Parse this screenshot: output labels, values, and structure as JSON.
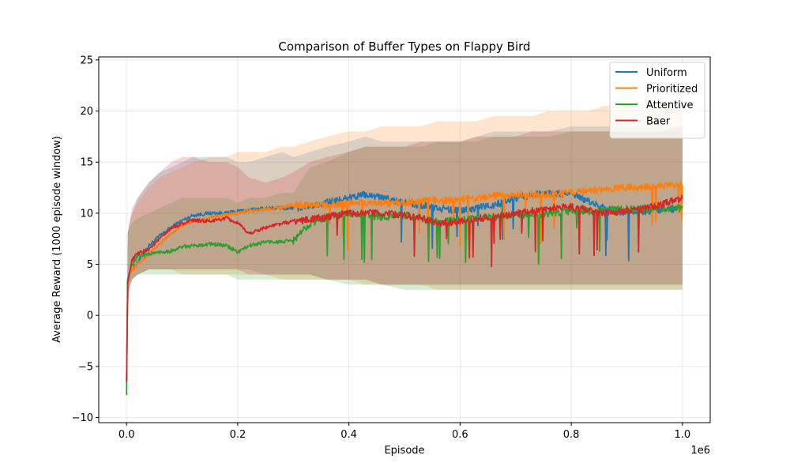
{
  "chart_data": {
    "type": "line",
    "title": "Comparison of Buffer Types on Flappy Bird",
    "xlabel": "Episode",
    "ylabel": "Average Reward (1000 episode window)",
    "x_scale_label": "1e6",
    "xlim": [
      -0.05,
      1.05
    ],
    "ylim": [
      -10.5,
      25.3
    ],
    "xticks": [
      0.0,
      0.2,
      0.4,
      0.6,
      0.8,
      1.0
    ],
    "xtick_labels": [
      "0.0",
      "0.2",
      "0.4",
      "0.6",
      "0.8",
      "1.0"
    ],
    "yticks": [
      -10,
      -5,
      0,
      5,
      10,
      15,
      20,
      25
    ],
    "ytick_labels": [
      "−10",
      "−5",
      "0",
      "5",
      "10",
      "15",
      "20",
      "25"
    ],
    "grid": true,
    "legend_position": "top-right",
    "series": [
      {
        "name": "Uniform",
        "color": "#1f77b4",
        "x": [
          0.0,
          0.002,
          0.005,
          0.01,
          0.02,
          0.04,
          0.06,
          0.08,
          0.1,
          0.12,
          0.15,
          0.18,
          0.2,
          0.22,
          0.25,
          0.28,
          0.3,
          0.33,
          0.36,
          0.4,
          0.43,
          0.46,
          0.5,
          0.53,
          0.56,
          0.6,
          0.63,
          0.66,
          0.7,
          0.73,
          0.76,
          0.8,
          0.83,
          0.86,
          0.9,
          0.93,
          0.96,
          1.0
        ],
        "values": [
          -6.5,
          3.0,
          4.0,
          4.5,
          5.2,
          6.8,
          7.8,
          8.6,
          9.3,
          9.8,
          10.0,
          10.0,
          10.2,
          10.3,
          10.5,
          10.5,
          10.5,
          10.7,
          11.0,
          11.5,
          11.8,
          11.5,
          11.0,
          10.8,
          10.5,
          10.2,
          10.5,
          10.8,
          11.5,
          11.8,
          12.0,
          11.8,
          11.2,
          10.5,
          10.0,
          10.2,
          10.3,
          10.5
        ],
        "upper": [
          -6.0,
          8.0,
          9.0,
          10.0,
          11.5,
          13.0,
          14.0,
          14.5,
          15.0,
          15.5,
          15.5,
          15.5,
          15.0,
          15.0,
          15.5,
          16.0,
          15.5,
          16.0,
          16.5,
          17.0,
          17.5,
          17.0,
          17.0,
          17.0,
          17.0,
          17.0,
          17.5,
          18.0,
          18.0,
          18.0,
          18.0,
          18.5,
          18.5,
          18.5,
          18.5,
          18.5,
          18.5,
          18.5
        ],
        "lower": [
          -8.0,
          0.5,
          3.0,
          3.5,
          4.0,
          4.5,
          4.5,
          4.5,
          4.5,
          4.5,
          4.5,
          4.5,
          4.5,
          4.5,
          4.0,
          4.0,
          4.0,
          4.0,
          3.5,
          3.5,
          3.5,
          3.0,
          3.0,
          3.0,
          3.0,
          3.0,
          3.0,
          3.0,
          3.0,
          3.0,
          3.0,
          3.0,
          3.0,
          3.0,
          3.0,
          3.0,
          3.0,
          3.0
        ]
      },
      {
        "name": "Prioritized",
        "color": "#ff7f0e",
        "x": [
          0.0,
          0.002,
          0.005,
          0.01,
          0.02,
          0.04,
          0.06,
          0.08,
          0.1,
          0.12,
          0.15,
          0.18,
          0.2,
          0.22,
          0.25,
          0.28,
          0.3,
          0.33,
          0.36,
          0.4,
          0.43,
          0.46,
          0.5,
          0.53,
          0.56,
          0.6,
          0.63,
          0.66,
          0.7,
          0.73,
          0.76,
          0.8,
          0.83,
          0.86,
          0.9,
          0.93,
          0.96,
          1.0
        ],
        "values": [
          -6.5,
          3.5,
          4.0,
          4.5,
          5.0,
          6.0,
          7.0,
          8.0,
          8.8,
          9.2,
          9.6,
          9.8,
          10.0,
          10.2,
          10.4,
          10.6,
          10.8,
          10.8,
          10.8,
          11.0,
          11.0,
          11.0,
          11.0,
          11.2,
          11.3,
          11.3,
          11.5,
          11.7,
          11.8,
          11.8,
          11.8,
          12.0,
          12.2,
          12.3,
          12.5,
          12.5,
          12.7,
          12.8
        ],
        "upper": [
          -6.0,
          8.0,
          9.0,
          10.0,
          11.0,
          12.5,
          13.5,
          14.0,
          14.5,
          15.0,
          15.5,
          15.5,
          16.0,
          16.0,
          16.0,
          16.5,
          16.5,
          17.0,
          17.5,
          18.0,
          18.0,
          18.5,
          18.5,
          18.5,
          19.0,
          19.0,
          19.0,
          19.5,
          19.5,
          19.5,
          20.0,
          20.0,
          20.0,
          20.5,
          20.5,
          20.5,
          20.5,
          21.0
        ],
        "lower": [
          -8.0,
          1.0,
          3.0,
          3.5,
          4.0,
          4.5,
          4.5,
          4.5,
          4.0,
          4.0,
          4.0,
          4.0,
          4.0,
          4.0,
          4.0,
          3.5,
          3.5,
          3.5,
          3.5,
          3.5,
          3.0,
          3.0,
          3.0,
          3.0,
          2.5,
          2.5,
          2.5,
          2.5,
          2.5,
          2.5,
          2.5,
          2.5,
          2.5,
          2.5,
          2.5,
          2.5,
          2.5,
          2.5
        ]
      },
      {
        "name": "Attentive",
        "color": "#2ca02c",
        "x": [
          0.0,
          0.002,
          0.005,
          0.01,
          0.02,
          0.04,
          0.06,
          0.08,
          0.1,
          0.12,
          0.15,
          0.18,
          0.2,
          0.22,
          0.25,
          0.28,
          0.3,
          0.33,
          0.36,
          0.4,
          0.43,
          0.46,
          0.5,
          0.53,
          0.56,
          0.6,
          0.63,
          0.66,
          0.7,
          0.73,
          0.76,
          0.8,
          0.83,
          0.86,
          0.9,
          0.93,
          0.96,
          1.0
        ],
        "values": [
          -7.8,
          3.5,
          4.2,
          5.0,
          5.8,
          6.0,
          6.2,
          6.3,
          6.7,
          6.8,
          7.0,
          6.8,
          6.2,
          6.8,
          7.2,
          7.2,
          7.3,
          9.0,
          9.6,
          10.0,
          9.8,
          9.6,
          9.8,
          9.5,
          9.2,
          9.3,
          9.5,
          9.6,
          9.8,
          9.8,
          10.0,
          10.2,
          10.2,
          10.3,
          10.4,
          10.4,
          10.5,
          10.5
        ],
        "upper": [
          -7.5,
          8.0,
          8.5,
          9.0,
          9.5,
          10.0,
          10.5,
          11.0,
          11.5,
          11.5,
          11.5,
          11.5,
          11.0,
          11.5,
          11.5,
          12.0,
          12.0,
          14.5,
          15.0,
          16.0,
          16.5,
          16.5,
          16.5,
          16.5,
          17.0,
          17.0,
          17.0,
          17.5,
          17.5,
          17.5,
          17.5,
          18.0,
          18.0,
          18.0,
          18.0,
          18.0,
          18.0,
          18.0
        ],
        "lower": [
          -8.2,
          0.5,
          2.5,
          3.5,
          4.0,
          4.0,
          4.0,
          4.0,
          4.0,
          4.0,
          4.0,
          4.0,
          3.5,
          3.5,
          3.5,
          3.5,
          3.5,
          3.5,
          3.5,
          3.0,
          3.0,
          3.0,
          2.5,
          2.5,
          2.5,
          2.5,
          2.5,
          2.5,
          2.5,
          2.5,
          2.5,
          2.5,
          2.5,
          2.5,
          2.5,
          2.5,
          2.5,
          2.5
        ]
      },
      {
        "name": "Baer",
        "color": "#d62728",
        "x": [
          0.0,
          0.002,
          0.005,
          0.01,
          0.02,
          0.04,
          0.06,
          0.08,
          0.1,
          0.12,
          0.15,
          0.18,
          0.2,
          0.22,
          0.25,
          0.28,
          0.3,
          0.33,
          0.36,
          0.4,
          0.43,
          0.46,
          0.5,
          0.53,
          0.56,
          0.6,
          0.63,
          0.66,
          0.7,
          0.73,
          0.76,
          0.8,
          0.83,
          0.86,
          0.9,
          0.93,
          0.96,
          1.0
        ],
        "values": [
          -6.5,
          3.2,
          4.0,
          5.5,
          6.0,
          6.5,
          7.5,
          8.5,
          9.0,
          9.3,
          9.2,
          9.5,
          9.0,
          8.0,
          8.6,
          9.0,
          9.2,
          9.4,
          9.6,
          10.0,
          10.0,
          10.0,
          9.8,
          9.5,
          9.0,
          9.2,
          9.5,
          9.6,
          10.0,
          10.2,
          10.5,
          10.6,
          10.3,
          10.0,
          10.2,
          10.4,
          10.8,
          11.5
        ],
        "upper": [
          -6.0,
          8.0,
          9.0,
          10.5,
          11.5,
          13.0,
          14.0,
          15.0,
          15.5,
          15.5,
          15.0,
          15.0,
          14.5,
          13.5,
          13.0,
          13.5,
          14.0,
          15.0,
          15.5,
          16.0,
          16.5,
          16.5,
          16.5,
          17.0,
          17.0,
          17.0,
          17.5,
          17.5,
          17.5,
          18.0,
          18.0,
          18.0,
          18.0,
          18.0,
          18.0,
          18.0,
          18.0,
          18.5
        ],
        "lower": [
          -7.5,
          0.5,
          2.5,
          3.5,
          4.0,
          4.5,
          4.5,
          4.5,
          4.5,
          4.5,
          4.5,
          4.5,
          4.5,
          4.0,
          4.0,
          4.0,
          4.0,
          4.0,
          3.5,
          3.5,
          3.5,
          3.0,
          3.0,
          3.0,
          3.0,
          3.0,
          3.0,
          3.0,
          3.0,
          3.0,
          3.0,
          3.0,
          3.0,
          3.0,
          3.0,
          3.0,
          3.0,
          3.0
        ]
      }
    ]
  }
}
